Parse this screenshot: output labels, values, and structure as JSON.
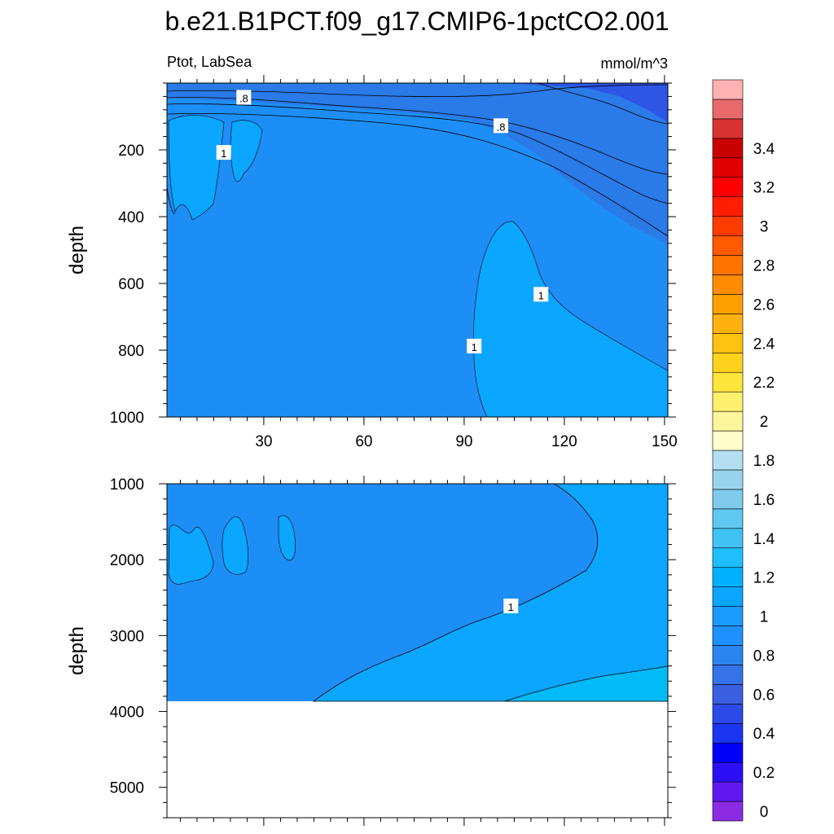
{
  "chart_data": {
    "type": "contour",
    "title": "b.e21.B1PCT.f09_g17.CMIP6-1pctCO2.001",
    "left_string": "Ptot, LabSea",
    "right_string": "mmol/m^3",
    "ylabel": "depth",
    "panels": [
      {
        "name": "upper",
        "xlim": [
          1,
          151
        ],
        "ylim": [
          1000,
          0
        ],
        "xticks": [
          30,
          60,
          90,
          120,
          150
        ],
        "yticks": [
          200,
          400,
          600,
          800,
          1000
        ],
        "contour_labels": [
          {
            "text": ".8",
            "x": 24,
            "y": 45
          },
          {
            "text": ".8",
            "x": 101,
            "y": 130
          },
          {
            "text": "1",
            "x": 18,
            "y": 210
          },
          {
            "text": "1",
            "x": 113,
            "y": 635
          },
          {
            "text": "1",
            "x": 93,
            "y": 790
          }
        ]
      },
      {
        "name": "lower",
        "xlim": [
          1,
          151
        ],
        "ylim": [
          5400,
          1000
        ],
        "xticks": [
          30,
          60,
          90,
          120,
          150
        ],
        "yticks": [
          1000,
          2000,
          3000,
          4000,
          5000
        ],
        "bottom_depth": 3870,
        "contour_labels": [
          {
            "text": "1",
            "x": 104,
            "y": 2620
          }
        ]
      }
    ],
    "colorbar": {
      "labels": [
        "0",
        "0.2",
        "0.4",
        "0.6",
        "0.8",
        "1",
        "1.2",
        "1.4",
        "1.6",
        "1.8",
        "2",
        "2.2",
        "2.4",
        "2.6",
        "2.8",
        "3",
        "3.2",
        "3.4"
      ],
      "colors": [
        "#8b2be2",
        "#5f19f0",
        "#2d0ff5",
        "#0000f8",
        "#1a36ee",
        "#2c4ae8",
        "#3a5fe0",
        "#3473e8",
        "#2a85f0",
        "#1e90ff",
        "#1a9cff",
        "#0aa6ff",
        "#00b1ff",
        "#1ebfff",
        "#41c2f5",
        "#5fc8f0",
        "#7fcbee",
        "#9ad3ee",
        "#b4dff2",
        "#ffffcc",
        "#fff59a",
        "#fff06e",
        "#ffe43a",
        "#ffd21e",
        "#ffc20e",
        "#ffb10e",
        "#ff9f00",
        "#ff8c00",
        "#ff7300",
        "#ff5a00",
        "#ff3c00",
        "#ff1e00",
        "#ff0000",
        "#e00000",
        "#c80000",
        "#d93233",
        "#e86a6a",
        "#ffb2b2"
      ]
    }
  }
}
